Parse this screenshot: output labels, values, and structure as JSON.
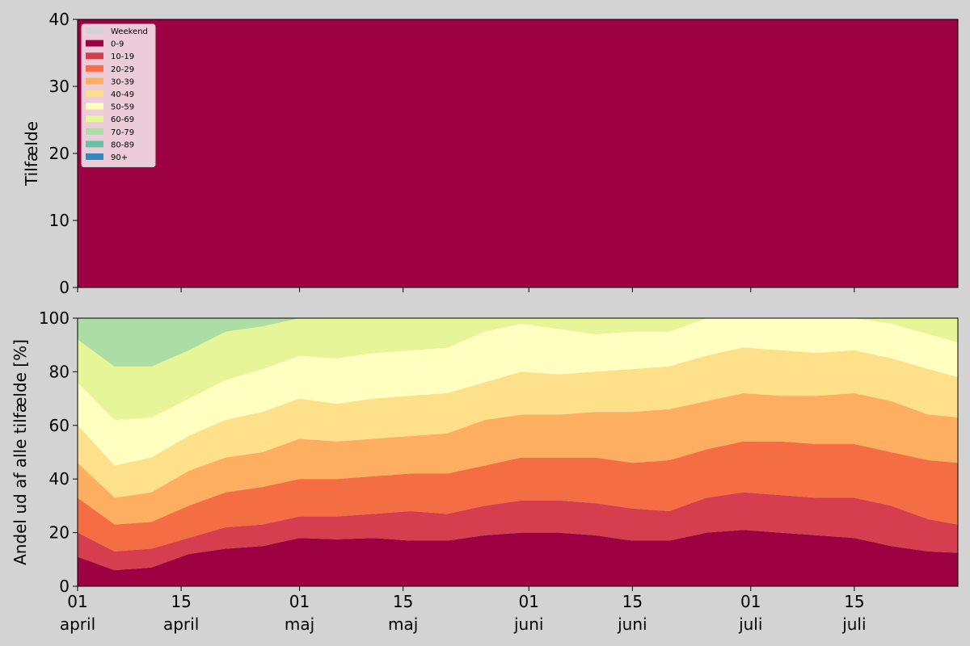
{
  "chart_data": [
    {
      "type": "area",
      "ylabel": "Tilfælde",
      "x": [
        0,
        5,
        10,
        15,
        20,
        25,
        30,
        35,
        40,
        45,
        50,
        55,
        60,
        65,
        70,
        75,
        80,
        85,
        90,
        95,
        100,
        105,
        110,
        115,
        119
      ],
      "series": [
        {
          "color": "#9e0142",
          "values": [
            40,
            40,
            40,
            40,
            40,
            40,
            40,
            40,
            40,
            40,
            40,
            40,
            40,
            40,
            40,
            40,
            40,
            40,
            40,
            40,
            40,
            40,
            40,
            40,
            40
          ]
        }
      ],
      "xlim": [
        0,
        119
      ],
      "xticks": [
        0,
        14,
        30,
        44,
        61,
        75,
        91,
        105
      ],
      "ylim": [
        0,
        40
      ],
      "yticks": [
        0,
        10,
        20,
        30,
        40
      ],
      "weekend": {
        "label": "Weekend",
        "color": "#d3d3d3"
      },
      "legend": "upper left"
    },
    {
      "type": "stacked-area",
      "ylabel": "Andel ud af alle tilfælde [%]",
      "x": [
        0,
        5,
        10,
        15,
        20,
        25,
        30,
        35,
        40,
        45,
        50,
        55,
        60,
        65,
        70,
        75,
        80,
        85,
        90,
        95,
        100,
        105,
        110,
        115,
        119
      ],
      "series": [
        {
          "name": "0-9",
          "color": "#9e0142",
          "values": [
            11,
            6,
            7,
            12,
            14,
            15,
            18,
            17.5,
            18,
            17,
            17,
            19,
            20,
            20,
            19,
            17,
            17,
            20,
            21,
            20,
            19,
            18,
            15,
            13,
            12.5
          ]
        },
        {
          "name": "10-19",
          "color": "#d53e4f",
          "values": [
            9,
            7,
            7,
            6,
            8,
            8,
            8,
            8.5,
            9,
            11,
            10,
            11,
            12,
            12,
            12,
            12,
            11,
            13,
            14,
            14,
            14,
            15,
            15,
            12,
            10.5
          ]
        },
        {
          "name": "20-29",
          "color": "#f46d43",
          "values": [
            13,
            10,
            10,
            12,
            13,
            14,
            14,
            14,
            14,
            14,
            15,
            15,
            16,
            16,
            17,
            17,
            19,
            18,
            19,
            20,
            20,
            20,
            20,
            22,
            23
          ]
        },
        {
          "name": "30-39",
          "color": "#fdae61",
          "values": [
            13,
            10,
            11,
            13,
            13,
            13,
            15,
            14,
            14,
            14,
            15,
            17,
            16,
            16,
            17,
            19,
            19,
            18,
            18,
            17,
            18,
            19,
            19,
            17,
            17
          ]
        },
        {
          "name": "40-49",
          "color": "#fee08b",
          "values": [
            14,
            12,
            13,
            13,
            14,
            15,
            15,
            14,
            15,
            15,
            15,
            14,
            16,
            15,
            15,
            16,
            16,
            17,
            17,
            17,
            16,
            16,
            16,
            17,
            15
          ]
        },
        {
          "name": "50-59",
          "color": "#ffffbf",
          "values": [
            16,
            17,
            15,
            14,
            15,
            16,
            16,
            17,
            17,
            17,
            17,
            19,
            18,
            17,
            14,
            14,
            13,
            14,
            11,
            12,
            13,
            12,
            13,
            13,
            13
          ]
        },
        {
          "name": "60-69",
          "color": "#e6f598",
          "values": [
            16,
            20,
            19,
            18,
            18,
            16,
            14,
            15,
            13,
            12,
            11,
            5,
            2,
            4,
            6,
            5,
            5,
            0,
            0,
            0,
            0,
            0,
            2,
            6,
            9
          ]
        },
        {
          "name": "70-79",
          "color": "#abdda4",
          "values": [
            8,
            18,
            18,
            12,
            5,
            3,
            0,
            0,
            0,
            0,
            0,
            0,
            0,
            0,
            0,
            0,
            0,
            0,
            0,
            0,
            0,
            0,
            0,
            0,
            0
          ]
        },
        {
          "name": "80-89",
          "color": "#66c2a5",
          "values": [
            0,
            0,
            0,
            0,
            0,
            0,
            0,
            0,
            0,
            0,
            0,
            0,
            0,
            0,
            0,
            0,
            0,
            0,
            0,
            0,
            0,
            0,
            0,
            0,
            0
          ]
        },
        {
          "name": "90+",
          "color": "#3288bd",
          "values": [
            0,
            0,
            0,
            0,
            0,
            0,
            0,
            0,
            0,
            0,
            0,
            0,
            0,
            0,
            0,
            0,
            0,
            0,
            0,
            0,
            0,
            0,
            0,
            0,
            0
          ]
        }
      ],
      "xlim": [
        0,
        119
      ],
      "xticks": [
        {
          "value": 0,
          "label": "01\napril"
        },
        {
          "value": 14,
          "label": "15\napril"
        },
        {
          "value": 30,
          "label": "01\nmaj"
        },
        {
          "value": 44,
          "label": "15\nmaj"
        },
        {
          "value": 61,
          "label": "01\njuni"
        },
        {
          "value": 75,
          "label": "15\njuni"
        },
        {
          "value": 91,
          "label": "01\njuli"
        },
        {
          "value": 105,
          "label": "15\njuli"
        }
      ],
      "ylim": [
        0,
        100
      ],
      "yticks": [
        0,
        20,
        40,
        60,
        80,
        100
      ]
    }
  ]
}
